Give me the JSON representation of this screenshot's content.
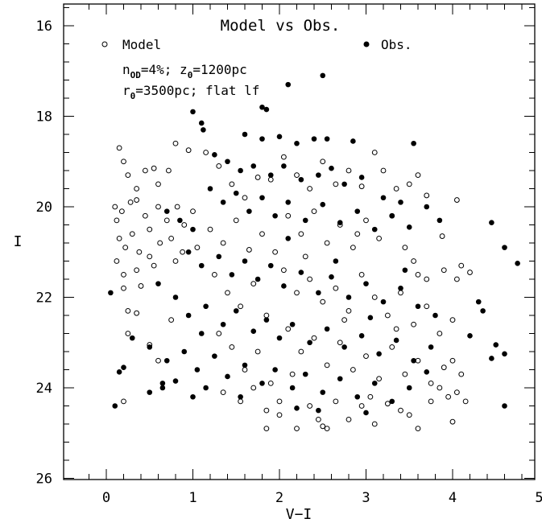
{
  "chart_data": {
    "type": "scatter",
    "title": "Model vs Obs.",
    "xlabel": "V−I",
    "ylabel": "I",
    "xlim": [
      -0.4,
      5.1
    ],
    "ylim": [
      26,
      15.5
    ],
    "y_inverted": true,
    "grid": false,
    "legend_position": "top",
    "xticks": [
      "0",
      "1",
      "2",
      "3",
      "4",
      "5"
    ],
    "yticks": [
      "16",
      "18",
      "20",
      "22",
      "24",
      "26"
    ],
    "annotations": {
      "line1_prefix": "n",
      "line1_sub1": "OD",
      "line1_mid": "=4%;  z",
      "line1_sub2": "0",
      "line1_suffix": "=1200pc",
      "line2_prefix": "r",
      "line2_sub": "0",
      "line2_suffix": "=3500pc; flat lf"
    },
    "series": [
      {
        "name": "Model",
        "marker": "open-circle",
        "color": "#000000",
        "points": [
          [
            0.15,
            18.7
          ],
          [
            0.2,
            19.0
          ],
          [
            0.25,
            19.3
          ],
          [
            0.35,
            19.6
          ],
          [
            0.45,
            19.2
          ],
          [
            0.55,
            19.15
          ],
          [
            0.6,
            19.5
          ],
          [
            0.72,
            19.2
          ],
          [
            0.8,
            18.6
          ],
          [
            0.95,
            18.75
          ],
          [
            0.1,
            20.0
          ],
          [
            0.12,
            20.3
          ],
          [
            0.18,
            20.1
          ],
          [
            0.28,
            19.9
          ],
          [
            0.35,
            19.85
          ],
          [
            0.45,
            20.2
          ],
          [
            0.5,
            20.5
          ],
          [
            0.6,
            20.0
          ],
          [
            0.7,
            20.3
          ],
          [
            0.82,
            20.0
          ],
          [
            0.9,
            20.4
          ],
          [
            1.0,
            20.1
          ],
          [
            0.15,
            20.7
          ],
          [
            0.22,
            20.9
          ],
          [
            0.3,
            20.6
          ],
          [
            0.38,
            21.0
          ],
          [
            0.5,
            21.1
          ],
          [
            0.62,
            20.8
          ],
          [
            0.75,
            20.7
          ],
          [
            0.88,
            21.0
          ],
          [
            0.12,
            21.2
          ],
          [
            0.2,
            21.5
          ],
          [
            0.35,
            21.4
          ],
          [
            0.55,
            21.3
          ],
          [
            0.8,
            21.2
          ],
          [
            1.05,
            20.9
          ],
          [
            0.2,
            21.8
          ],
          [
            0.4,
            21.75
          ],
          [
            0.25,
            22.3
          ],
          [
            0.35,
            22.35
          ],
          [
            0.25,
            22.8
          ],
          [
            0.75,
            22.5
          ],
          [
            0.5,
            23.05
          ],
          [
            0.6,
            23.4
          ],
          [
            0.2,
            24.3
          ],
          [
            1.15,
            18.8
          ],
          [
            1.3,
            19.1
          ],
          [
            1.45,
            19.5
          ],
          [
            1.6,
            19.8
          ],
          [
            1.75,
            19.35
          ],
          [
            1.9,
            19.4
          ],
          [
            1.2,
            20.5
          ],
          [
            1.35,
            20.8
          ],
          [
            1.5,
            20.3
          ],
          [
            1.65,
            20.95
          ],
          [
            1.8,
            20.6
          ],
          [
            1.95,
            21.0
          ],
          [
            1.25,
            21.5
          ],
          [
            1.4,
            21.9
          ],
          [
            1.55,
            22.2
          ],
          [
            1.7,
            21.7
          ],
          [
            1.85,
            22.4
          ],
          [
            1.3,
            22.8
          ],
          [
            1.45,
            23.1
          ],
          [
            1.6,
            23.6
          ],
          [
            1.75,
            23.2
          ],
          [
            1.9,
            23.9
          ],
          [
            1.35,
            24.1
          ],
          [
            1.55,
            24.3
          ],
          [
            1.7,
            24.0
          ],
          [
            1.85,
            24.5
          ],
          [
            2.0,
            24.3
          ],
          [
            2.05,
            18.9
          ],
          [
            2.2,
            19.3
          ],
          [
            2.35,
            19.6
          ],
          [
            2.5,
            19.0
          ],
          [
            2.65,
            19.5
          ],
          [
            2.8,
            19.2
          ],
          [
            2.95,
            19.55
          ],
          [
            3.1,
            18.8
          ],
          [
            3.2,
            19.2
          ],
          [
            3.35,
            19.6
          ],
          [
            3.5,
            19.5
          ],
          [
            3.6,
            19.3
          ],
          [
            3.7,
            19.75
          ],
          [
            2.1,
            20.2
          ],
          [
            2.25,
            20.6
          ],
          [
            2.4,
            20.1
          ],
          [
            2.55,
            20.8
          ],
          [
            2.7,
            20.4
          ],
          [
            2.85,
            20.9
          ],
          [
            3.0,
            20.3
          ],
          [
            3.15,
            20.7
          ],
          [
            3.3,
            20.2
          ],
          [
            3.45,
            20.9
          ],
          [
            3.55,
            21.2
          ],
          [
            3.6,
            21.5
          ],
          [
            3.7,
            21.6
          ],
          [
            3.9,
            21.4
          ],
          [
            4.05,
            21.6
          ],
          [
            4.1,
            21.3
          ],
          [
            3.88,
            20.65
          ],
          [
            4.05,
            19.85
          ],
          [
            4.2,
            21.45
          ],
          [
            2.05,
            21.4
          ],
          [
            2.2,
            21.9
          ],
          [
            2.35,
            21.6
          ],
          [
            2.5,
            22.1
          ],
          [
            2.65,
            21.8
          ],
          [
            2.8,
            22.3
          ],
          [
            2.95,
            21.5
          ],
          [
            3.1,
            22.0
          ],
          [
            3.25,
            22.4
          ],
          [
            3.4,
            21.9
          ],
          [
            3.55,
            22.6
          ],
          [
            3.7,
            22.2
          ],
          [
            3.85,
            22.8
          ],
          [
            4.0,
            22.5
          ],
          [
            2.1,
            22.7
          ],
          [
            2.25,
            23.2
          ],
          [
            2.4,
            22.9
          ],
          [
            2.55,
            23.5
          ],
          [
            2.7,
            23.0
          ],
          [
            2.85,
            23.6
          ],
          [
            3.0,
            23.3
          ],
          [
            3.15,
            23.8
          ],
          [
            3.3,
            23.1
          ],
          [
            3.45,
            23.7
          ],
          [
            3.6,
            23.4
          ],
          [
            3.75,
            23.9
          ],
          [
            3.9,
            23.55
          ],
          [
            4.0,
            23.4
          ],
          [
            4.1,
            23.7
          ],
          [
            2.0,
            24.6
          ],
          [
            2.2,
            24.9
          ],
          [
            2.35,
            24.4
          ],
          [
            2.5,
            24.85
          ],
          [
            2.65,
            24.3
          ],
          [
            2.8,
            24.7
          ],
          [
            2.95,
            24.4
          ],
          [
            3.1,
            24.8
          ],
          [
            3.25,
            24.35
          ],
          [
            3.4,
            24.5
          ],
          [
            3.6,
            24.9
          ],
          [
            3.75,
            24.3
          ],
          [
            3.85,
            24.0
          ],
          [
            3.95,
            24.2
          ],
          [
            4.05,
            24.1
          ],
          [
            4.15,
            24.3
          ],
          [
            4.0,
            24.75
          ],
          [
            1.85,
            24.9
          ],
          [
            2.55,
            24.9
          ],
          [
            3.5,
            24.6
          ],
          [
            2.45,
            24.7
          ],
          [
            2.15,
            23.7
          ],
          [
            2.75,
            22.5
          ],
          [
            3.05,
            24.2
          ],
          [
            3.35,
            22.7
          ],
          [
            2.9,
            20.6
          ],
          [
            2.3,
            21.1
          ]
        ]
      },
      {
        "name": "Obs.",
        "marker": "filled-circle",
        "color": "#000000",
        "points": [
          [
            2.5,
            17.1
          ],
          [
            2.1,
            17.3
          ],
          [
            1.8,
            17.8
          ],
          [
            1.85,
            17.85
          ],
          [
            1.0,
            17.9
          ],
          [
            1.1,
            18.15
          ],
          [
            1.12,
            18.3
          ],
          [
            1.6,
            18.4
          ],
          [
            1.8,
            18.5
          ],
          [
            2.0,
            18.45
          ],
          [
            2.2,
            18.6
          ],
          [
            2.4,
            18.5
          ],
          [
            2.55,
            18.5
          ],
          [
            2.85,
            18.55
          ],
          [
            3.55,
            18.6
          ],
          [
            1.25,
            18.85
          ],
          [
            1.4,
            19.0
          ],
          [
            1.55,
            19.2
          ],
          [
            1.7,
            19.1
          ],
          [
            1.9,
            19.3
          ],
          [
            2.05,
            19.1
          ],
          [
            2.25,
            19.4
          ],
          [
            2.45,
            19.3
          ],
          [
            2.6,
            19.15
          ],
          [
            2.75,
            19.5
          ],
          [
            2.95,
            19.35
          ],
          [
            3.2,
            19.8
          ],
          [
            3.4,
            19.9
          ],
          [
            1.2,
            19.6
          ],
          [
            1.35,
            19.9
          ],
          [
            1.5,
            19.7
          ],
          [
            1.65,
            20.1
          ],
          [
            1.8,
            19.8
          ],
          [
            1.95,
            20.2
          ],
          [
            2.1,
            19.9
          ],
          [
            2.3,
            20.3
          ],
          [
            2.5,
            19.95
          ],
          [
            2.7,
            20.35
          ],
          [
            2.9,
            20.1
          ],
          [
            3.1,
            20.5
          ],
          [
            3.3,
            20.2
          ],
          [
            3.5,
            20.45
          ],
          [
            3.7,
            20.0
          ],
          [
            3.85,
            20.3
          ],
          [
            4.45,
            20.35
          ],
          [
            4.6,
            20.9
          ],
          [
            4.75,
            21.25
          ],
          [
            0.7,
            20.1
          ],
          [
            0.85,
            20.3
          ],
          [
            1.0,
            20.5
          ],
          [
            0.95,
            21.0
          ],
          [
            1.1,
            21.3
          ],
          [
            1.3,
            21.1
          ],
          [
            1.45,
            21.5
          ],
          [
            1.6,
            21.2
          ],
          [
            1.75,
            21.6
          ],
          [
            1.9,
            21.3
          ],
          [
            2.05,
            21.75
          ],
          [
            2.25,
            21.45
          ],
          [
            2.45,
            21.9
          ],
          [
            2.6,
            21.55
          ],
          [
            2.8,
            22.0
          ],
          [
            3.0,
            21.7
          ],
          [
            3.2,
            22.1
          ],
          [
            3.4,
            21.8
          ],
          [
            3.6,
            22.2
          ],
          [
            3.8,
            22.4
          ],
          [
            4.3,
            22.1
          ],
          [
            4.35,
            22.3
          ],
          [
            0.05,
            21.9
          ],
          [
            0.6,
            21.7
          ],
          [
            0.8,
            22.0
          ],
          [
            0.95,
            22.4
          ],
          [
            1.15,
            22.2
          ],
          [
            1.35,
            22.6
          ],
          [
            1.5,
            22.3
          ],
          [
            1.7,
            22.75
          ],
          [
            1.85,
            22.5
          ],
          [
            2.0,
            22.9
          ],
          [
            2.15,
            22.6
          ],
          [
            2.35,
            23.0
          ],
          [
            2.55,
            22.7
          ],
          [
            2.75,
            23.1
          ],
          [
            2.95,
            22.85
          ],
          [
            3.15,
            23.25
          ],
          [
            3.35,
            22.95
          ],
          [
            3.55,
            23.4
          ],
          [
            3.75,
            23.1
          ],
          [
            4.2,
            22.85
          ],
          [
            0.3,
            22.9
          ],
          [
            0.5,
            23.1
          ],
          [
            0.7,
            23.4
          ],
          [
            0.9,
            23.2
          ],
          [
            1.05,
            23.6
          ],
          [
            1.25,
            23.3
          ],
          [
            1.4,
            23.75
          ],
          [
            1.6,
            23.5
          ],
          [
            1.8,
            23.9
          ],
          [
            1.95,
            23.6
          ],
          [
            2.15,
            24.0
          ],
          [
            2.3,
            23.7
          ],
          [
            2.5,
            24.1
          ],
          [
            2.7,
            23.8
          ],
          [
            2.9,
            24.2
          ],
          [
            3.1,
            23.9
          ],
          [
            3.3,
            24.3
          ],
          [
            3.5,
            24.0
          ],
          [
            3.7,
            23.65
          ],
          [
            4.6,
            23.25
          ],
          [
            4.45,
            23.35
          ],
          [
            4.5,
            23.05
          ],
          [
            0.2,
            23.55
          ],
          [
            0.15,
            23.65
          ],
          [
            0.5,
            24.1
          ],
          [
            0.65,
            23.9
          ],
          [
            0.8,
            23.85
          ],
          [
            1.0,
            24.2
          ],
          [
            1.15,
            24.0
          ],
          [
            0.1,
            24.4
          ],
          [
            4.6,
            24.4
          ],
          [
            2.2,
            24.45
          ],
          [
            3.0,
            24.55
          ],
          [
            0.65,
            24.0
          ],
          [
            1.1,
            22.8
          ],
          [
            2.1,
            20.7
          ],
          [
            2.65,
            21.2
          ],
          [
            3.05,
            22.45
          ],
          [
            1.55,
            24.2
          ],
          [
            2.45,
            24.5
          ],
          [
            3.45,
            21.4
          ]
        ]
      }
    ]
  }
}
